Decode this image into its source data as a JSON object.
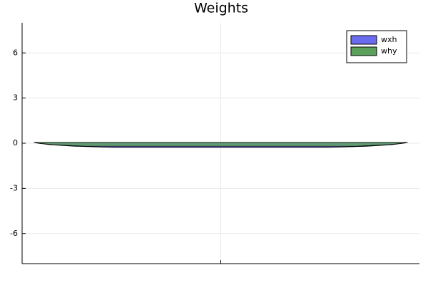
{
  "chart_data": {
    "type": "violin",
    "title": "Weights",
    "xlim": [
      0.5,
      1.5
    ],
    "xticks": [
      1
    ],
    "ylim": [
      -8,
      8
    ],
    "yticks": [
      -6,
      -3,
      0,
      3,
      6
    ],
    "grid": true,
    "legend": "top-right",
    "series": [
      {
        "name": "wxh",
        "color": "#6b6bf0",
        "position": 1,
        "y": [
          -0.28,
          -0.2,
          -0.1,
          0,
          0.05
        ],
        "density": [
          0.27,
          0.37,
          0.43,
          0.46,
          0.47
        ]
      },
      {
        "name": "why",
        "color": "#5aa05a",
        "position": 1,
        "y": [
          -0.2,
          -0.1,
          0,
          0.05
        ],
        "density": [
          0.34,
          0.42,
          0.46,
          0.47
        ]
      }
    ]
  }
}
